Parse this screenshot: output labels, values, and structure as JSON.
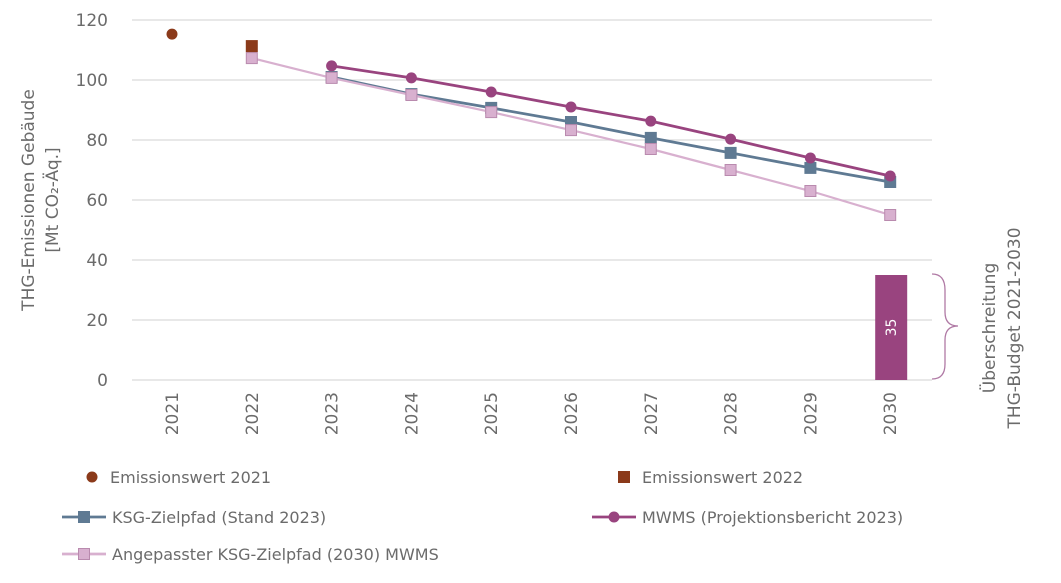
{
  "chart_data": {
    "type": "line",
    "title": "",
    "ylabel_line1": "THG-Emissionen Gebäude",
    "ylabel_line2": "[Mt CO₂-Äq.]",
    "ylim": [
      0,
      120
    ],
    "yticks": [
      "0",
      "20",
      "40",
      "60",
      "80",
      "100",
      "120"
    ],
    "x": [
      "2021",
      "2022",
      "2023",
      "2024",
      "2025",
      "2026",
      "2027",
      "2028",
      "2029",
      "2030"
    ],
    "grid": true,
    "series": [
      {
        "name": "Emissionswert 2021",
        "marker": "circle",
        "line": false,
        "color": "#8B3A1A",
        "values": [
          115.3,
          null,
          null,
          null,
          null,
          null,
          null,
          null,
          null,
          null
        ]
      },
      {
        "name": "Emissionswert 2022",
        "marker": "square",
        "line": false,
        "color": "#8B3A1A",
        "values": [
          null,
          111.3,
          null,
          null,
          null,
          null,
          null,
          null,
          null,
          null
        ]
      },
      {
        "name": "KSG-Zielpfad (Stand 2023)",
        "marker": "square",
        "line": true,
        "color": "#5F7A93",
        "values": [
          null,
          null,
          101,
          95.3,
          90.7,
          86,
          80.7,
          75.7,
          70.7,
          66
        ]
      },
      {
        "name": "MWMS (Projektionsbericht 2023)",
        "marker": "circle",
        "line": true,
        "color": "#99447F",
        "values": [
          null,
          null,
          104.7,
          100.7,
          96,
          91,
          86.3,
          80.3,
          74,
          68
        ]
      },
      {
        "name": "Angepasster KSG-Zielpfad (2030) MWMS",
        "marker": "square",
        "line": true,
        "color": "#D8B0CF",
        "values": [
          null,
          107.3,
          100.7,
          95,
          89.3,
          83.3,
          77,
          70,
          63,
          55
        ]
      }
    ],
    "bar": {
      "category": "2030",
      "value": 35,
      "label": "35",
      "color": "#99447F"
    },
    "annotation_line1": "Überschreitung",
    "annotation_line2": "THG-Budget 2021-2030",
    "legend_placement": "bottom"
  }
}
